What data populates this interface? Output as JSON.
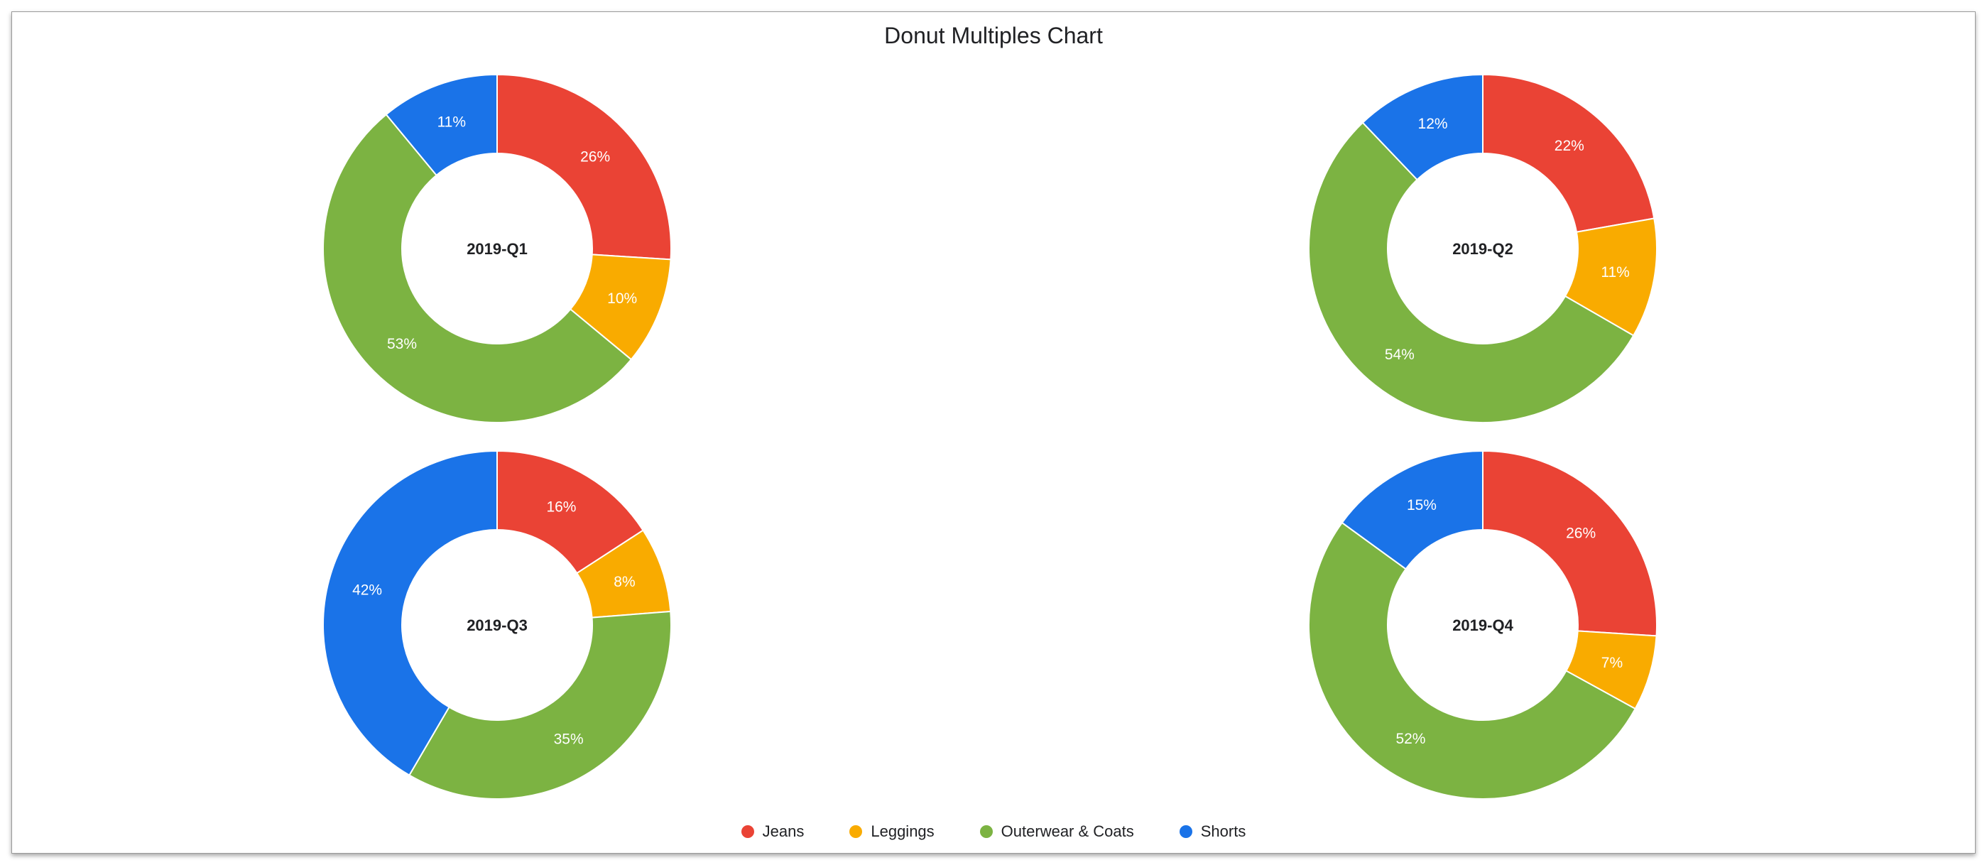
{
  "chart_data": {
    "type": "pie",
    "subtype": "donut-multiples",
    "title": "Donut Multiples Chart",
    "categories": [
      "Jeans",
      "Leggings",
      "Outerwear & Coats",
      "Shorts"
    ],
    "colors": [
      "#ea4335",
      "#f9ab00",
      "#7cb342",
      "#1a73e8"
    ],
    "legend": "bottom",
    "donuts": [
      {
        "name": "2019-Q1",
        "values": [
          26,
          10,
          53,
          11
        ]
      },
      {
        "name": "2019-Q2",
        "values": [
          22,
          11,
          54,
          12
        ]
      },
      {
        "name": "2019-Q3",
        "values": [
          16,
          8,
          35,
          42
        ]
      },
      {
        "name": "2019-Q4",
        "values": [
          26,
          7,
          52,
          15
        ]
      }
    ]
  }
}
